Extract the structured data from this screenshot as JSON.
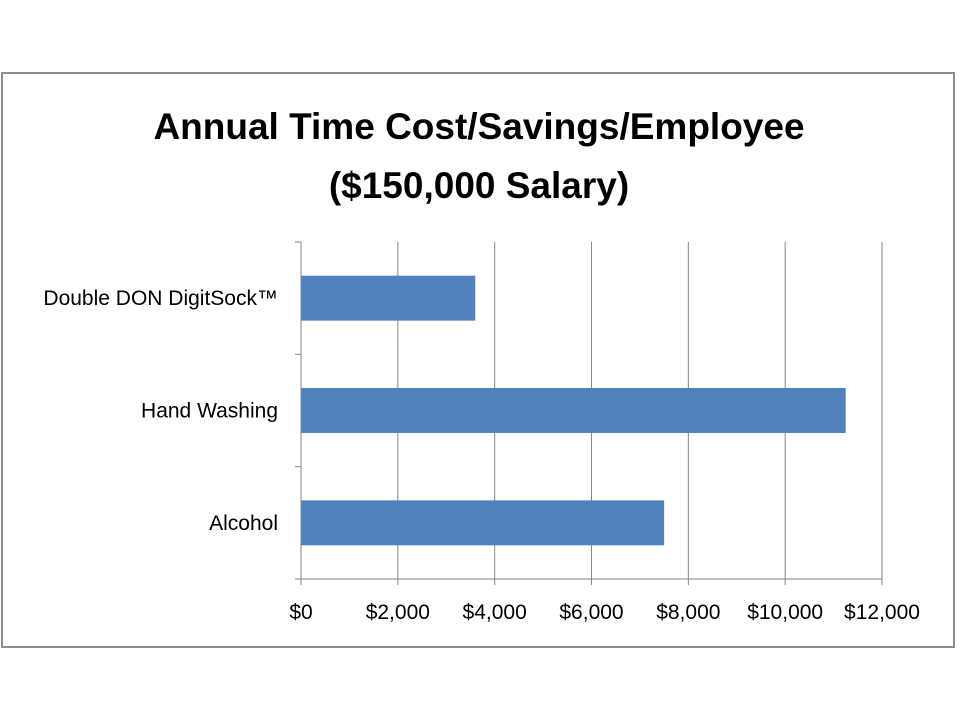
{
  "chart_data": {
    "type": "bar",
    "orientation": "horizontal",
    "title_lines": [
      "Annual Time Cost/Savings/Employee",
      "($150,000 Salary)"
    ],
    "categories": [
      "Double DON DigitSock™",
      "Hand Washing",
      "Alcohol"
    ],
    "values": [
      3600,
      11250,
      7500
    ],
    "xlabel": "",
    "ylabel": "",
    "xlim": [
      0,
      12000
    ],
    "xticks": [
      0,
      2000,
      4000,
      6000,
      8000,
      10000,
      12000
    ],
    "xtick_labels": [
      "$0",
      "$2,000",
      "$4,000",
      "$6,000",
      "$8,000",
      "$10,000",
      "$12,000"
    ],
    "grid": "vertical",
    "legend": "none",
    "bar_color": "#4f81bd",
    "grid_color": "#868686"
  }
}
